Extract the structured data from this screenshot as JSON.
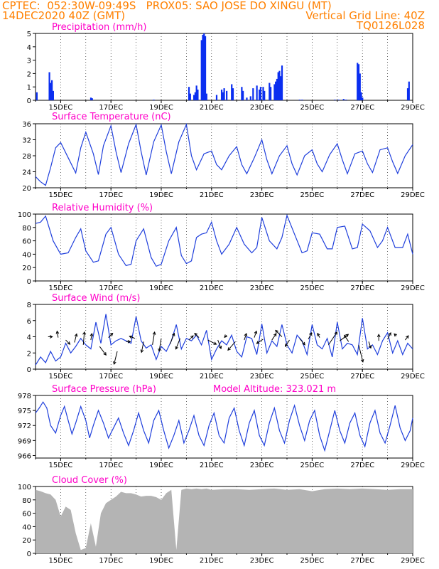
{
  "header": {
    "line1_left": "CPTEC:  052:30W-09:49S   PROX05: SAO JOSE DO XINGU (MT)",
    "line2_left": "14DEC2020 40Z (GMT)",
    "line2_right": "Vertical Grid Line: 40Z",
    "line3_right": "TQ0126L028"
  },
  "colors": {
    "header": "#ff8000",
    "title": "#ff00c8",
    "series": "#1f3fdc",
    "bars": "#0a2ef0",
    "cloud": "#b4b4b4"
  },
  "chart_data": [
    {
      "type": "bar",
      "title": "Precipitation (mm/h)",
      "ylim": [
        0,
        5
      ],
      "yticks": [
        0,
        1,
        2,
        3,
        4,
        5
      ],
      "x_ticks": [
        "15DEC",
        "17DEC",
        "19DEC",
        "21DEC",
        "23DEC",
        "25DEC",
        "27DEC",
        "29DEC"
      ],
      "x_range_days": [
        14.0,
        29.0
      ],
      "x_note": "x in fractional day of December 2020",
      "bars": [
        [
          14.55,
          2.1
        ],
        [
          14.6,
          1.3
        ],
        [
          14.65,
          1.5
        ],
        [
          14.7,
          0.7
        ],
        [
          14.05,
          0.6
        ],
        [
          16.2,
          0.2
        ],
        [
          16.25,
          0.15
        ],
        [
          18.7,
          0.05
        ],
        [
          20.1,
          1.0
        ],
        [
          20.15,
          0.5
        ],
        [
          20.3,
          0.4
        ],
        [
          20.35,
          0.6
        ],
        [
          20.4,
          1.1
        ],
        [
          20.45,
          0.8
        ],
        [
          20.6,
          4.5
        ],
        [
          20.65,
          4.9
        ],
        [
          20.7,
          5.0
        ],
        [
          20.75,
          4.8
        ],
        [
          20.8,
          0.5
        ],
        [
          21.2,
          0.4
        ],
        [
          21.4,
          0.8
        ],
        [
          21.45,
          0.6
        ],
        [
          21.5,
          0.9
        ],
        [
          21.6,
          0.7
        ],
        [
          21.8,
          1.2
        ],
        [
          21.85,
          0.9
        ],
        [
          22.2,
          1.0
        ],
        [
          22.25,
          0.7
        ],
        [
          22.4,
          0.2
        ],
        [
          22.55,
          0.3
        ],
        [
          22.65,
          0.9
        ],
        [
          22.8,
          1.1
        ],
        [
          22.9,
          0.8
        ],
        [
          22.95,
          1.0
        ],
        [
          23.05,
          1.0
        ],
        [
          23.1,
          0.7
        ],
        [
          23.3,
          1.3
        ],
        [
          23.35,
          1.0
        ],
        [
          23.5,
          1.2
        ],
        [
          23.55,
          1.4
        ],
        [
          23.6,
          1.6
        ],
        [
          23.65,
          2.1
        ],
        [
          23.7,
          2.2
        ],
        [
          23.75,
          1.8
        ],
        [
          23.8,
          2.6
        ],
        [
          24.5,
          0.05
        ],
        [
          24.6,
          0.05
        ],
        [
          25.9,
          0.05
        ],
        [
          26.05,
          0.05
        ],
        [
          26.25,
          0.1
        ],
        [
          26.35,
          0.05
        ],
        [
          26.8,
          2.8
        ],
        [
          26.85,
          2.7
        ],
        [
          26.9,
          2.0
        ],
        [
          26.95,
          0.6
        ],
        [
          27.0,
          0.2
        ],
        [
          28.8,
          0.9
        ],
        [
          28.85,
          1.4
        ]
      ]
    },
    {
      "type": "line",
      "title": "Surface Temperature (nC)",
      "ylim": [
        20,
        36
      ],
      "yticks": [
        20,
        24,
        28,
        32,
        36
      ],
      "x_ticks": [
        "15DEC",
        "17DEC",
        "19DEC",
        "21DEC",
        "23DEC",
        "25DEC",
        "27DEC",
        "29DEC"
      ],
      "x_range_days": [
        14.0,
        29.0
      ],
      "x": [
        14.0,
        14.2,
        14.4,
        14.6,
        14.8,
        15.0,
        15.3,
        15.6,
        15.8,
        16.0,
        16.3,
        16.5,
        16.7,
        17.0,
        17.2,
        17.4,
        17.7,
        18.0,
        18.2,
        18.4,
        18.7,
        19.0,
        19.2,
        19.4,
        19.7,
        20.0,
        20.2,
        20.4,
        20.7,
        21.0,
        21.2,
        21.4,
        21.7,
        22.0,
        22.2,
        22.4,
        22.7,
        23.0,
        23.2,
        23.4,
        23.7,
        24.0,
        24.2,
        24.4,
        24.7,
        25.0,
        25.2,
        25.4,
        25.7,
        26.0,
        26.2,
        26.4,
        26.7,
        27.0,
        27.2,
        27.4,
        27.7,
        28.0,
        28.2,
        28.4,
        28.7,
        29.0
      ],
      "values": [
        22.8,
        21.5,
        20.6,
        25.0,
        30.0,
        31.3,
        27.5,
        23.7,
        30.0,
        33.9,
        28.5,
        23.3,
        30.5,
        35.5,
        29.0,
        23.8,
        31.0,
        35.8,
        29.0,
        23.2,
        31.5,
        35.7,
        29.0,
        23.5,
        31.5,
        35.8,
        28.0,
        24.5,
        28.5,
        29.2,
        25.8,
        24.5,
        28.0,
        30.3,
        25.8,
        23.5,
        27.5,
        32.0,
        27.0,
        23.5,
        28.0,
        30.5,
        26.0,
        23.2,
        28.0,
        29.5,
        26.0,
        24.0,
        28.3,
        31.0,
        27.0,
        23.5,
        28.5,
        29.2,
        26.0,
        23.8,
        29.5,
        30.0,
        26.5,
        23.6,
        28.0,
        30.8
      ]
    },
    {
      "type": "line",
      "title": "Relative Humidity (%)",
      "ylim": [
        0,
        100
      ],
      "yticks": [
        0,
        20,
        40,
        60,
        80,
        100
      ],
      "x_ticks": [
        "15DEC",
        "17DEC",
        "19DEC",
        "21DEC",
        "23DEC",
        "25DEC",
        "27DEC",
        "29DEC"
      ],
      "x_range_days": [
        14.0,
        29.0
      ],
      "x": [
        14.0,
        14.2,
        14.4,
        14.7,
        15.0,
        15.3,
        15.6,
        15.8,
        16.0,
        16.3,
        16.5,
        16.8,
        17.0,
        17.3,
        17.6,
        17.8,
        18.0,
        18.3,
        18.6,
        18.8,
        19.0,
        19.3,
        19.6,
        19.8,
        20.0,
        20.2,
        20.4,
        20.6,
        20.8,
        21.0,
        21.2,
        21.4,
        21.7,
        22.0,
        22.3,
        22.6,
        22.8,
        23.0,
        23.3,
        23.6,
        23.8,
        24.0,
        24.3,
        24.6,
        24.8,
        25.0,
        25.3,
        25.6,
        25.8,
        26.0,
        26.3,
        26.6,
        26.8,
        27.0,
        27.3,
        27.6,
        27.8,
        28.0,
        28.3,
        28.6,
        28.8,
        29.0
      ],
      "values": [
        86,
        88,
        97,
        60,
        40,
        42,
        65,
        78,
        45,
        28,
        30,
        70,
        80,
        40,
        23,
        25,
        60,
        78,
        35,
        22,
        25,
        60,
        80,
        38,
        26,
        30,
        65,
        70,
        72,
        88,
        60,
        40,
        55,
        80,
        55,
        42,
        50,
        95,
        60,
        48,
        65,
        98,
        70,
        42,
        45,
        72,
        70,
        48,
        48,
        80,
        82,
        48,
        50,
        85,
        75,
        50,
        60,
        80,
        50,
        50,
        70,
        40
      ]
    },
    {
      "type": "line",
      "title": "Surface Wind (m/s)",
      "ylim": [
        0,
        8
      ],
      "yticks": [
        0,
        2,
        4,
        6,
        8
      ],
      "x_ticks": [
        "15DEC",
        "17DEC",
        "19DEC",
        "21DEC",
        "23DEC",
        "25DEC",
        "27DEC",
        "29DEC"
      ],
      "x_range_days": [
        14.0,
        29.0
      ],
      "x": [
        14.0,
        14.2,
        14.4,
        14.6,
        14.8,
        15.0,
        15.2,
        15.4,
        15.6,
        15.8,
        16.0,
        16.2,
        16.4,
        16.6,
        16.8,
        17.0,
        17.2,
        17.4,
        17.6,
        17.8,
        18.0,
        18.2,
        18.4,
        18.6,
        18.8,
        19.0,
        19.2,
        19.4,
        19.6,
        19.8,
        20.0,
        20.2,
        20.4,
        20.6,
        20.8,
        21.0,
        21.2,
        21.4,
        21.6,
        21.8,
        22.0,
        22.2,
        22.4,
        22.6,
        22.8,
        23.0,
        23.2,
        23.4,
        23.6,
        23.8,
        24.0,
        24.2,
        24.4,
        24.6,
        24.8,
        25.0,
        25.2,
        25.4,
        25.6,
        25.8,
        26.0,
        26.2,
        26.4,
        26.6,
        26.8,
        27.0,
        27.2,
        27.4,
        27.6,
        27.8,
        28.0,
        28.2,
        28.4,
        28.6,
        28.8,
        29.0
      ],
      "values": [
        0.5,
        1.5,
        0.8,
        2.2,
        1.0,
        1.5,
        3.2,
        2.0,
        2.8,
        3.8,
        3.0,
        2.5,
        5.8,
        3.2,
        6.8,
        3.0,
        3.5,
        3.8,
        3.5,
        3.2,
        6.5,
        3.5,
        2.6,
        3.0,
        1.2,
        2.8,
        2.2,
        3.5,
        5.5,
        2.5,
        3.8,
        3.5,
        4.2,
        3.0,
        4.8,
        1.2,
        2.5,
        3.5,
        3.0,
        4.2,
        2.2,
        1.5,
        4.0,
        3.8,
        1.8,
        5.6,
        2.0,
        3.5,
        2.8,
        5.5,
        3.0,
        2.0,
        4.2,
        3.5,
        1.8,
        5.5,
        3.0,
        2.5,
        3.8,
        1.5,
        5.8,
        2.5,
        3.2,
        3.0,
        1.8,
        6.3,
        2.5,
        3.0,
        1.8,
        3.5,
        4.5,
        2.0,
        3.5,
        1.8,
        3.2,
        2.5
      ],
      "arrows": [
        [
          14.5,
          4.0,
          0.2,
          0.0
        ],
        [
          14.9,
          3.9,
          -0.05,
          0.3
        ],
        [
          15.2,
          3.6,
          0.2,
          -0.2
        ],
        [
          15.55,
          3.3,
          0.1,
          0.4
        ],
        [
          15.9,
          3.0,
          0.05,
          0.6
        ],
        [
          16.2,
          3.6,
          0.05,
          0.3
        ],
        [
          16.55,
          2.8,
          0.3,
          -0.4
        ],
        [
          16.9,
          3.9,
          0.2,
          0.2
        ],
        [
          17.25,
          2.2,
          -0.15,
          -0.6
        ],
        [
          17.6,
          3.4,
          0.2,
          0.0
        ],
        [
          17.95,
          3.8,
          -0.25,
          0.1
        ],
        [
          18.3,
          3.4,
          -0.1,
          -0.5
        ],
        [
          18.65,
          3.0,
          0.1,
          0.6
        ],
        [
          19.0,
          3.8,
          -0.1,
          -0.6
        ],
        [
          19.35,
          3.1,
          0.2,
          0.5
        ],
        [
          19.75,
          3.8,
          -0.2,
          -0.5
        ],
        [
          20.1,
          3.6,
          0.2,
          0.2
        ],
        [
          20.5,
          3.9,
          -0.2,
          0.2
        ],
        [
          20.85,
          3.6,
          0.4,
          -0.2
        ],
        [
          21.25,
          3.6,
          0.15,
          -0.4
        ],
        [
          21.6,
          4.2,
          -0.1,
          -0.1
        ],
        [
          21.95,
          3.4,
          -0.35,
          -0.4
        ],
        [
          22.3,
          3.6,
          0.1,
          0.3
        ],
        [
          22.7,
          3.9,
          0.1,
          0.3
        ],
        [
          23.05,
          3.7,
          -0.3,
          -0.2
        ],
        [
          23.4,
          3.6,
          0.2,
          0.3
        ],
        [
          23.8,
          4.0,
          -0.3,
          0.3
        ],
        [
          24.1,
          3.6,
          -0.2,
          -0.3
        ],
        [
          24.5,
          3.8,
          0.25,
          -0.3
        ],
        [
          24.85,
          3.7,
          0.15,
          0.3
        ],
        [
          25.3,
          3.9,
          -0.1,
          0.2
        ],
        [
          25.65,
          3.0,
          0.4,
          0.6
        ],
        [
          26.1,
          3.5,
          0.4,
          0.3
        ],
        [
          26.45,
          3.4,
          -0.2,
          0.3
        ],
        [
          26.85,
          3.0,
          0.2,
          -0.8
        ],
        [
          27.25,
          3.4,
          0.1,
          -0.3
        ],
        [
          27.65,
          3.5,
          0.0,
          0.3
        ],
        [
          28.0,
          3.7,
          0.15,
          0.3
        ],
        [
          28.35,
          4.1,
          -0.1,
          0.1
        ],
        [
          28.7,
          3.6,
          0.15,
          0.2
        ]
      ]
    },
    {
      "type": "line",
      "title": "Surface Pressure (hPa)",
      "subtitle": "Model Altitude: 323.021 m",
      "ylim": [
        965.5,
        978
      ],
      "yticks": [
        966,
        969,
        972,
        975,
        978
      ],
      "x_ticks": [
        "15DEC",
        "17DEC",
        "19DEC",
        "21DEC",
        "23DEC",
        "25DEC",
        "27DEC",
        "29DEC"
      ],
      "x_range_days": [
        14.0,
        29.0
      ],
      "x": [
        14.0,
        14.15,
        14.3,
        14.45,
        14.6,
        14.8,
        15.0,
        15.15,
        15.3,
        15.45,
        15.6,
        15.8,
        16.0,
        16.15,
        16.3,
        16.5,
        16.7,
        16.9,
        17.1,
        17.3,
        17.5,
        17.7,
        17.9,
        18.1,
        18.3,
        18.5,
        18.7,
        18.9,
        19.1,
        19.3,
        19.5,
        19.7,
        19.9,
        20.1,
        20.3,
        20.5,
        20.7,
        20.9,
        21.1,
        21.3,
        21.5,
        21.7,
        21.9,
        22.1,
        22.3,
        22.5,
        22.7,
        22.9,
        23.1,
        23.3,
        23.5,
        23.7,
        23.9,
        24.1,
        24.3,
        24.5,
        24.7,
        24.9,
        25.1,
        25.3,
        25.5,
        25.7,
        25.9,
        26.1,
        26.3,
        26.5,
        26.7,
        26.9,
        27.1,
        27.3,
        27.5,
        27.7,
        27.9,
        28.1,
        28.3,
        28.5,
        28.7,
        28.9,
        29.0
      ],
      "values": [
        974.5,
        975.5,
        976.7,
        975.5,
        972.0,
        970.5,
        974.0,
        975.8,
        973.0,
        970.3,
        972.5,
        975.8,
        973.0,
        969.5,
        972.0,
        975.0,
        972.5,
        969.5,
        971.5,
        973.5,
        970.5,
        968.0,
        971.0,
        974.5,
        971.0,
        968.5,
        973.0,
        975.0,
        971.0,
        967.5,
        970.0,
        973.0,
        968.5,
        971.0,
        974.0,
        970.0,
        968.0,
        972.0,
        974.5,
        970.0,
        968.5,
        973.5,
        975.5,
        971.0,
        968.0,
        972.5,
        975.0,
        970.0,
        968.0,
        972.5,
        975.5,
        971.0,
        968.5,
        973.0,
        976.0,
        972.0,
        969.0,
        973.0,
        975.0,
        970.0,
        967.0,
        971.0,
        975.0,
        971.0,
        968.5,
        972.5,
        974.5,
        970.0,
        967.8,
        972.5,
        975.0,
        970.5,
        968.5,
        972.0,
        976.0,
        971.5,
        969.0,
        971.0,
        973.5
      ]
    },
    {
      "type": "area",
      "title": "Cloud Cover (%)",
      "ylim": [
        0,
        100
      ],
      "yticks": [
        0,
        20,
        40,
        60,
        80,
        100
      ],
      "x_ticks": [
        "15DEC",
        "17DEC",
        "19DEC",
        "21DEC",
        "23DEC",
        "25DEC",
        "27DEC",
        "29DEC"
      ],
      "x_range_days": [
        14.0,
        29.0
      ],
      "x": [
        14.0,
        14.2,
        14.4,
        14.6,
        14.8,
        15.0,
        15.2,
        15.4,
        15.6,
        15.8,
        16.0,
        16.2,
        16.4,
        16.6,
        16.8,
        17.0,
        17.2,
        17.4,
        17.6,
        17.8,
        18.0,
        18.2,
        18.4,
        18.6,
        18.8,
        19.0,
        19.2,
        19.4,
        19.6,
        19.8,
        20.0,
        20.2,
        20.4,
        20.6,
        20.8,
        21.0,
        21.5,
        22.0,
        22.5,
        23.0,
        23.5,
        24.0,
        24.5,
        25.0,
        25.5,
        26.0,
        26.5,
        27.0,
        27.5,
        28.0,
        28.5,
        29.0
      ],
      "values": [
        95,
        93,
        90,
        88,
        80,
        55,
        70,
        65,
        30,
        5,
        8,
        45,
        10,
        60,
        75,
        80,
        85,
        92,
        90,
        90,
        88,
        85,
        86,
        86,
        84,
        80,
        90,
        95,
        5,
        95,
        97,
        96,
        97,
        96,
        97,
        95,
        96,
        96,
        95,
        96,
        97,
        95,
        96,
        93,
        96,
        97,
        96,
        97,
        96,
        95,
        96,
        96
      ]
    }
  ]
}
